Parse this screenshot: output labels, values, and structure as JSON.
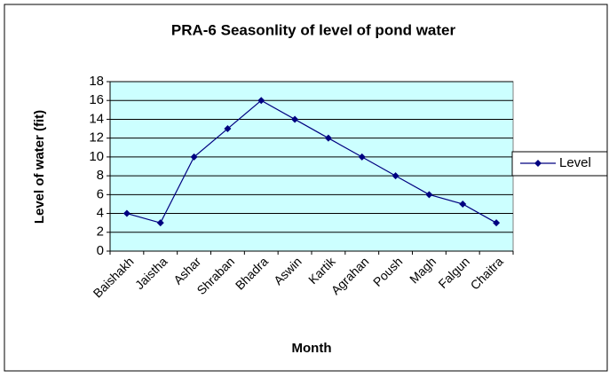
{
  "chart_data": {
    "type": "line",
    "title": "PRA-6 Seasonlity of level of pond water",
    "x_label": "Month",
    "y_label": "Level of water (fit)",
    "categories": [
      "Baishakh",
      "Jaistha",
      "Ashar",
      "Shraban",
      "Bhadra",
      "Aswin",
      "Kartik",
      "Agrahan",
      "Poush",
      "Magh",
      "Falgun",
      "Chaitra"
    ],
    "series": [
      {
        "name": "Level",
        "color": "#000080",
        "values": [
          4,
          3,
          10,
          13,
          16,
          14,
          12,
          10,
          8,
          6,
          5,
          3
        ]
      }
    ],
    "ylim": [
      0,
      18
    ],
    "yticks": [
      0,
      2,
      4,
      6,
      8,
      10,
      12,
      14,
      16,
      18
    ],
    "grid": true,
    "plot_background": "#ccffff",
    "legend": "right"
  }
}
